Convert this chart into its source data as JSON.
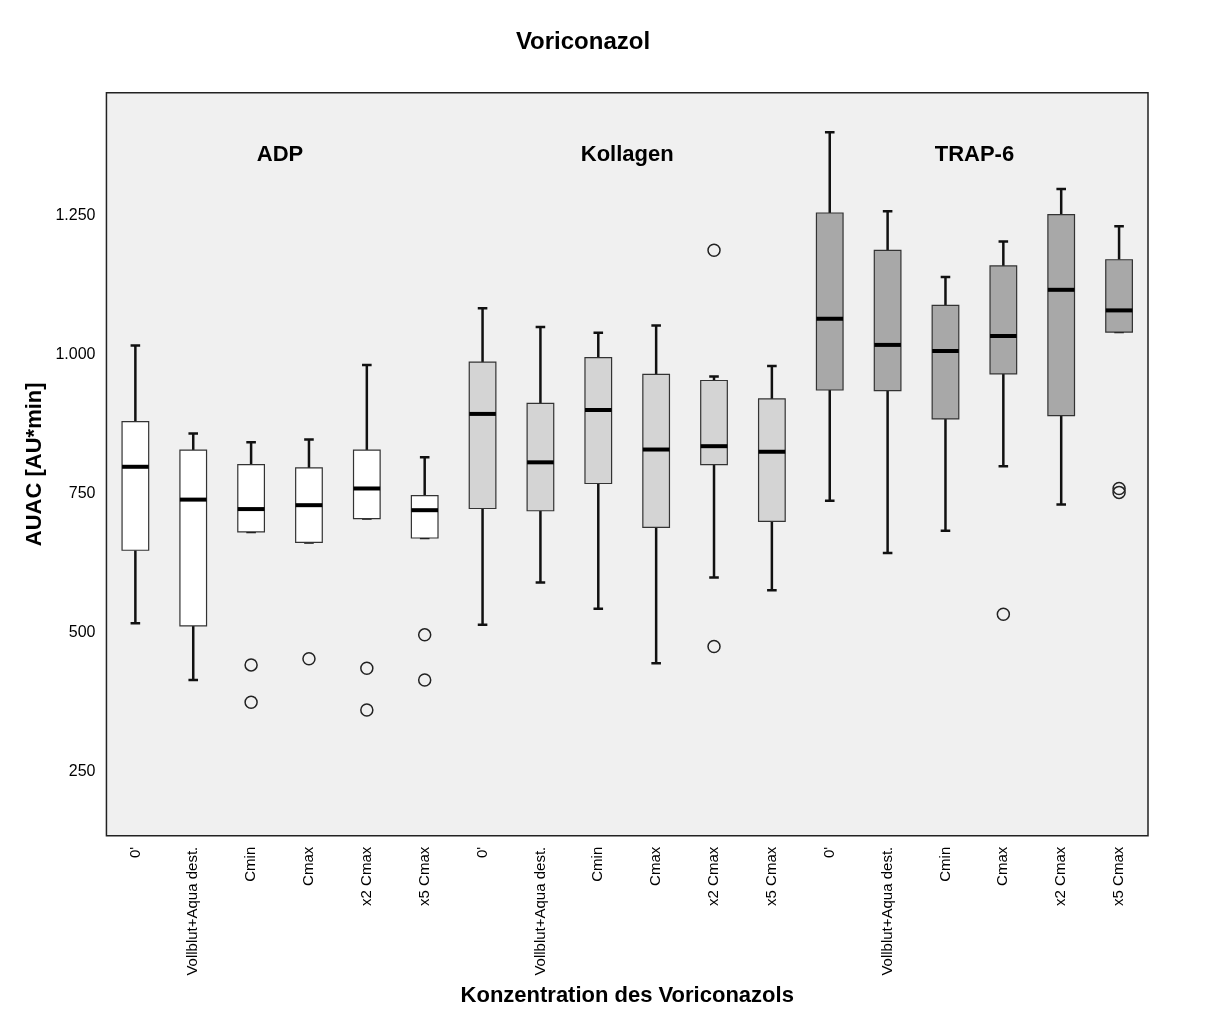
{
  "chart_data": {
    "type": "box",
    "title": "Voriconazol",
    "xlabel": "Konzentration des Voriconazols",
    "ylabel": "AUAC [AU*min]",
    "categories": [
      "0'",
      "Vollblut+Aqua dest.",
      "Cmin",
      "Cmax",
      "x2 Cmax",
      "x5 Cmax",
      "0'",
      "Vollblut+Aqua dest.",
      "Cmin",
      "Cmax",
      "x2 Cmax",
      "x5 Cmax",
      "0'",
      "Vollblut+Aqua dest.",
      "Cmin",
      "Cmax",
      "x2 Cmax",
      "x5 Cmax"
    ],
    "boxes": [
      {
        "low": 517,
        "q1": 648,
        "median": 798,
        "q3": 879,
        "high": 1016
      },
      {
        "low": 415,
        "q1": 512,
        "median": 739,
        "q3": 828,
        "high": 858
      },
      {
        "low": 681,
        "q1": 681,
        "median": 722,
        "q3": 802,
        "high": 842,
        "outliers": [
          442,
          375
        ]
      },
      {
        "low": 662,
        "q1": 662,
        "median": 729,
        "q3": 796,
        "high": 847,
        "outliers": [
          453
        ]
      },
      {
        "low": 705,
        "q1": 705,
        "median": 759,
        "q3": 828,
        "high": 981,
        "outliers": [
          436,
          361
        ]
      },
      {
        "low": 670,
        "q1": 670,
        "median": 720,
        "q3": 746,
        "high": 815,
        "outliers": [
          496,
          415
        ]
      },
      {
        "low": 514,
        "q1": 723,
        "median": 893,
        "q3": 986,
        "high": 1083
      },
      {
        "low": 590,
        "q1": 719,
        "median": 806,
        "q3": 912,
        "high": 1049
      },
      {
        "low": 543,
        "q1": 768,
        "median": 900,
        "q3": 994,
        "high": 1039
      },
      {
        "low": 445,
        "q1": 689,
        "median": 829,
        "q3": 964,
        "high": 1052
      },
      {
        "low": 599,
        "q1": 802,
        "median": 835,
        "q3": 953,
        "high": 960,
        "outliers": [
          1187,
          475
        ]
      },
      {
        "low": 576,
        "q1": 700,
        "median": 825,
        "q3": 920,
        "high": 979
      },
      {
        "low": 737,
        "q1": 936,
        "median": 1064,
        "q3": 1254,
        "high": 1399
      },
      {
        "low": 643,
        "q1": 935,
        "median": 1017,
        "q3": 1187,
        "high": 1257
      },
      {
        "low": 683,
        "q1": 884,
        "median": 1006,
        "q3": 1088,
        "high": 1139
      },
      {
        "low": 799,
        "q1": 965,
        "median": 1033,
        "q3": 1159,
        "high": 1203,
        "outliers": [
          533
        ]
      },
      {
        "low": 730,
        "q1": 890,
        "median": 1116,
        "q3": 1251,
        "high": 1297
      },
      {
        "low": 1040,
        "q1": 1040,
        "median": 1079,
        "q3": 1170,
        "high": 1230,
        "outliers": [
          759,
          752
        ]
      }
    ],
    "colors": [
      "#ffffff",
      "#ffffff",
      "#ffffff",
      "#ffffff",
      "#ffffff",
      "#ffffff",
      "#d4d4d4",
      "#d4d4d4",
      "#d4d4d4",
      "#d4d4d4",
      "#d4d4d4",
      "#d4d4d4",
      "#a8a8a8",
      "#a8a8a8",
      "#a8a8a8",
      "#a8a8a8",
      "#a8a8a8",
      "#a8a8a8"
    ],
    "ylim": [
      135,
      1470
    ],
    "yticks": [
      250,
      500,
      750,
      {
        "value": 1000,
        "label": "1.000"
      },
      {
        "value": 1250,
        "label": "1.250"
      }
    ],
    "annotations": [
      "ADP",
      "Kollagen",
      "TRAP-6"
    ]
  }
}
